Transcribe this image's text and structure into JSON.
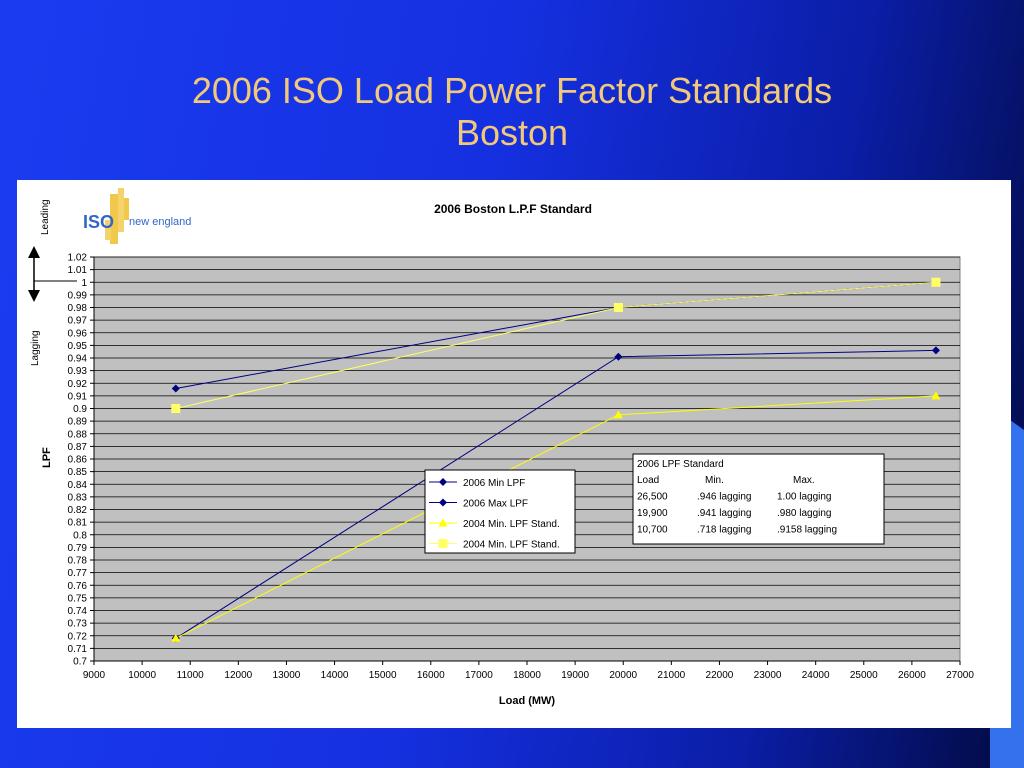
{
  "slide": {
    "title_line1": "2006 ISO Load Power Factor Standards",
    "title_line2": "Boston"
  },
  "logo": {
    "iso_text": "ISO",
    "ne_text": "new england"
  },
  "side_labels": {
    "leading": "Leading",
    "lagging": "Lagging"
  },
  "table": {
    "rows": [
      "2006 LPF Standard",
      [
        "Load",
        "Min.",
        "Max."
      ],
      [
        "26,500",
        ".946 lagging",
        "1.00 lagging"
      ],
      [
        "19,900",
        ".941 lagging",
        ".980 lagging"
      ],
      [
        "10,700",
        ".718 lagging",
        ".9158 lagging"
      ]
    ]
  },
  "colors": {
    "plot_bg": "#c0c0c0",
    "navy": "#000080",
    "yellow": "#ffff00",
    "title_text": "#f2c879"
  },
  "chart_data": {
    "type": "line",
    "title": "2006 Boston L.P.F Standard",
    "xlabel": "Load (MW)",
    "ylabel": "LPF",
    "xlim": [
      9000,
      27000
    ],
    "ylim": [
      0.7,
      1.02
    ],
    "x_ticks": [
      "9000",
      "10000",
      "11000",
      "12000",
      "13000",
      "14000",
      "15000",
      "16000",
      "17000",
      "18000",
      "19000",
      "20000",
      "21000",
      "22000",
      "23000",
      "24000",
      "25000",
      "26000",
      "27000"
    ],
    "y_ticks": [
      "0.7",
      "0.71",
      "0.72",
      "0.73",
      "0.74",
      "0.75",
      "0.76",
      "0.77",
      "0.78",
      "0.79",
      "0.8",
      "0.81",
      "0.82",
      "0.83",
      "0.84",
      "0.85",
      "0.86",
      "0.87",
      "0.88",
      "0.89",
      "0.9",
      "0.91",
      "0.92",
      "0.93",
      "0.94",
      "0.95",
      "0.96",
      "0.97",
      "0.98",
      "0.99",
      "1",
      "1.01",
      "1.02"
    ],
    "grid": true,
    "legend_position": "center",
    "series": [
      {
        "name": "2006 Min LPF",
        "color": "#000080",
        "marker": "diamond",
        "x": [
          10700,
          19900,
          26500
        ],
        "y": [
          0.718,
          0.941,
          0.946
        ]
      },
      {
        "name": "2006 Max LPF",
        "color": "#000080",
        "marker": "diamond",
        "x": [
          10700,
          19900,
          26500
        ],
        "y": [
          0.9158,
          0.98,
          1.0
        ]
      },
      {
        "name": "2004 Min. LPF Stand.",
        "color": "#ffff00",
        "marker": "triangle",
        "x": [
          10700,
          19900,
          26500
        ],
        "y": [
          0.718,
          0.895,
          0.91
        ]
      },
      {
        "name": "2004 Min. LPF Stand.",
        "color": "#ffff66",
        "marker": "square",
        "x": [
          10700,
          19900,
          26500
        ],
        "y": [
          0.9,
          0.98,
          1.0
        ]
      }
    ]
  }
}
